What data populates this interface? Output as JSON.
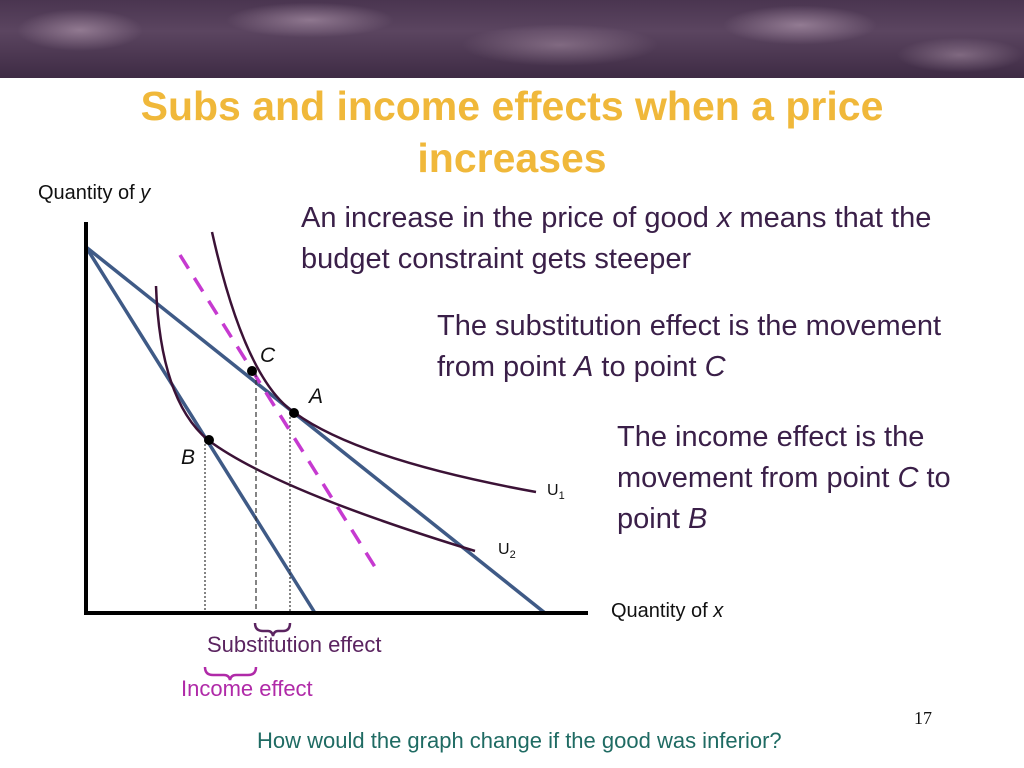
{
  "header": {
    "title_line1": "Subs and income effects when a price",
    "title_line2": "increases"
  },
  "axes": {
    "y_label": "Quantity of",
    "y_var": "y",
    "x_label": "Quantity of",
    "x_var": "x"
  },
  "points": {
    "a": "A",
    "b": "B",
    "c": "C"
  },
  "curves": {
    "u1_base": "U",
    "u1_sub": "1",
    "u2_base": "U",
    "u2_sub": "2"
  },
  "explanations": {
    "budget_part1": "An increase in the price of good ",
    "budget_var": "x",
    "budget_part2": " means that the budget constraint gets steeper",
    "subst_part1": "The substitution effect is the movement from point ",
    "subst_from": "A",
    "subst_mid": " to point ",
    "subst_to": "C",
    "income_part1": "The income effect is the movement from point ",
    "income_from": "C",
    "income_mid": " to point ",
    "income_to": "B"
  },
  "effects": {
    "substitution": "Substitution effect",
    "income": "Income effect"
  },
  "footer": {
    "question": "How would the graph change if the good was inferior?",
    "slide_number": "17"
  },
  "colors": {
    "title": "#f0b83a",
    "budget_line": "#3f5a86",
    "indifference_curve": "#3b1236",
    "dashed_budget": "#c63ad0",
    "substitution_brace": "#5b2460",
    "income_brace": "#b02aa8",
    "question_text": "#1f6b63"
  }
}
